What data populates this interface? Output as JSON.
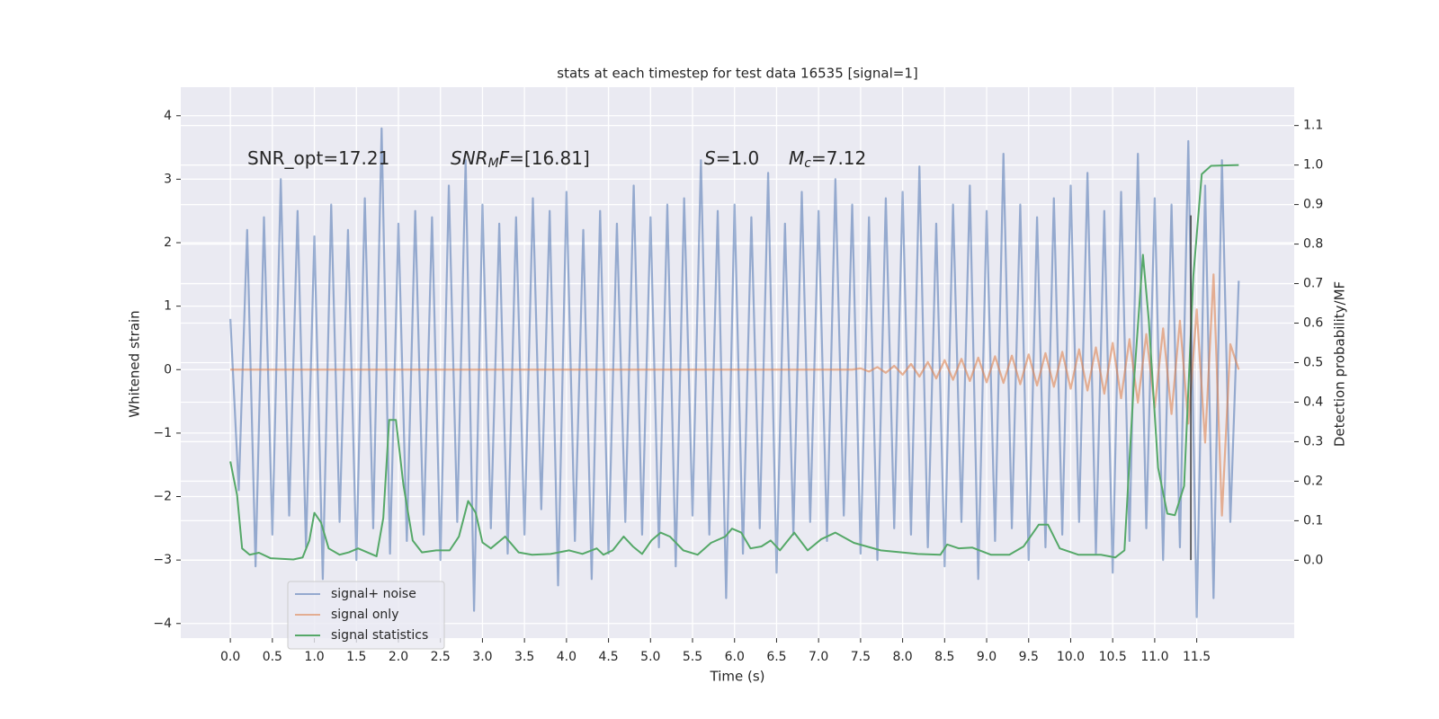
{
  "chart_data": {
    "type": "line",
    "title": "stats at each timestep for test data 16535 [signal=1]",
    "xlabel": "Time (s)",
    "ylabel": "Whitened strain",
    "y2label": "Detection probability/MF",
    "xlim": [
      -0.59,
      12.66
    ],
    "ylim": [
      -4.23,
      4.45
    ],
    "y2lim": [
      -0.197,
      1.197
    ],
    "xticks": [
      {
        "value": 0,
        "label": "0.0"
      },
      0.5,
      {
        "value": 1,
        "label": "1.0"
      },
      1.5,
      {
        "value": 2,
        "label": "2.0"
      },
      2.5,
      {
        "value": 3,
        "label": "3.0"
      },
      3.5,
      {
        "value": 4,
        "label": "4.0"
      },
      4.5,
      {
        "value": 5,
        "label": "5.0"
      },
      5.5,
      {
        "value": 6,
        "label": "6.0"
      },
      6.5,
      {
        "value": 7,
        "label": "7.0"
      },
      7.5,
      {
        "value": 8,
        "label": "8.0"
      },
      8.5,
      {
        "value": 9,
        "label": "9.0"
      },
      9.5,
      {
        "value": 10,
        "label": "10.0"
      },
      10.5,
      {
        "value": 11,
        "label": "11.0"
      },
      11.5
    ],
    "yticks": [
      {
        "value": -4,
        "label": "−4"
      },
      {
        "value": -3,
        "label": "−3"
      },
      {
        "value": -2,
        "label": "−2"
      },
      {
        "value": -1,
        "label": "−1"
      },
      0,
      1,
      2,
      3,
      4
    ],
    "y2ticks": [
      {
        "value": 0,
        "label": "0.0"
      },
      0.1,
      0.2,
      0.3,
      0.4,
      0.5,
      0.6,
      0.7,
      0.8,
      0.9,
      {
        "value": 1,
        "label": "1.0"
      },
      1.1
    ],
    "grid": true,
    "legend": "lower left",
    "x": [
      0,
      0.1,
      0.2,
      0.3,
      0.4,
      0.5,
      0.6,
      0.7,
      0.8,
      0.9,
      1,
      1.1,
      1.2,
      1.3,
      1.4,
      1.5,
      1.6,
      1.7,
      1.8,
      1.9,
      2,
      2.1,
      2.2,
      2.3,
      2.4,
      2.5,
      2.6,
      2.7,
      2.8,
      2.9,
      3,
      3.1,
      3.2,
      3.3,
      3.4,
      3.5,
      3.6,
      3.7,
      3.8,
      3.9,
      4,
      4.1,
      4.2,
      4.3,
      4.4,
      4.5,
      4.6,
      4.7,
      4.8,
      4.9,
      5,
      5.1,
      5.2,
      5.3,
      5.4,
      5.5,
      5.6,
      5.7,
      5.8,
      5.9,
      6,
      6.1,
      6.2,
      6.3,
      6.4,
      6.5,
      6.6,
      6.7,
      6.8,
      6.9,
      7,
      7.1,
      7.2,
      7.3,
      7.4,
      7.5,
      7.6,
      7.7,
      7.8,
      7.9,
      8,
      8.1,
      8.2,
      8.3,
      8.4,
      8.5,
      8.6,
      8.7,
      8.8,
      8.9,
      9,
      9.1,
      9.2,
      9.3,
      9.4,
      9.5,
      9.6,
      9.7,
      9.8,
      9.9,
      10,
      10.1,
      10.2,
      10.3,
      10.4,
      10.5,
      10.6,
      10.7,
      10.8,
      10.9,
      11,
      11.1,
      11.2,
      11.3,
      11.4,
      11.5,
      11.6,
      11.7,
      11.8,
      11.9,
      12
    ],
    "series": [
      {
        "name": "signal+ noise",
        "color": "#4c72b0",
        "opacity": 0.55,
        "values": [
          0.8,
          -1.9,
          2.2,
          -3.1,
          2.4,
          -2.6,
          3.0,
          -2.3,
          2.5,
          -2.8,
          2.1,
          -3.3,
          2.6,
          -2.4,
          2.2,
          -3.0,
          2.7,
          -2.5,
          3.8,
          -2.9,
          2.3,
          -2.7,
          2.5,
          -2.6,
          2.4,
          -3.0,
          2.9,
          -2.4,
          3.3,
          -3.8,
          2.6,
          -2.5,
          2.3,
          -2.9,
          2.4,
          -2.6,
          2.7,
          -2.2,
          2.5,
          -3.4,
          2.8,
          -2.7,
          2.2,
          -3.3,
          2.5,
          -2.9,
          2.3,
          -2.4,
          2.9,
          -2.6,
          2.4,
          -2.8,
          2.6,
          -3.1,
          2.7,
          -2.3,
          3.3,
          -2.6,
          2.5,
          -3.6,
          2.6,
          -2.9,
          2.4,
          -2.5,
          3.1,
          -3.2,
          2.3,
          -2.6,
          2.8,
          -2.4,
          2.5,
          -2.7,
          3.0,
          -2.3,
          2.6,
          -2.9,
          2.4,
          -3.0,
          2.7,
          -2.5,
          2.8,
          -2.6,
          3.2,
          -2.8,
          2.3,
          -3.1,
          2.6,
          -2.4,
          2.9,
          -3.3,
          2.5,
          -2.7,
          3.4,
          -2.5,
          2.6,
          -3.0,
          2.4,
          -2.8,
          2.7,
          -2.6,
          2.9,
          -2.4,
          3.1,
          -2.9,
          2.5,
          -3.2,
          2.8,
          -2.7,
          3.4,
          -2.5,
          2.7,
          -3.0,
          2.6,
          -2.8,
          3.6,
          -3.9,
          2.9,
          -3.6,
          3.3,
          -2.4,
          1.4
        ]
      },
      {
        "name": "signal only",
        "color": "#dd8452",
        "opacity": 0.6,
        "values": [
          0,
          0,
          0,
          0,
          0,
          0,
          0,
          0,
          0,
          0,
          0,
          0,
          0,
          0,
          0,
          0,
          0,
          0,
          0,
          0,
          0,
          0,
          0,
          0,
          0,
          0,
          0,
          0,
          0,
          0,
          0,
          0,
          0,
          0,
          0,
          0,
          0,
          0,
          0,
          0,
          0,
          0,
          0,
          0,
          0,
          0,
          0,
          0,
          0,
          0,
          0,
          0,
          0,
          0,
          0,
          0,
          0,
          0,
          0,
          0,
          0,
          0,
          0,
          0,
          0,
          0,
          0,
          0,
          0,
          0,
          0,
          0,
          0,
          0,
          0,
          0.02,
          -0.03,
          0.04,
          -0.05,
          0.06,
          -0.08,
          0.09,
          -0.11,
          0.12,
          -0.14,
          0.15,
          -0.16,
          0.17,
          -0.18,
          0.19,
          -0.2,
          0.21,
          -0.21,
          0.22,
          -0.23,
          0.24,
          -0.25,
          0.26,
          -0.27,
          0.28,
          -0.3,
          0.32,
          -0.33,
          0.35,
          -0.38,
          0.42,
          -0.45,
          0.48,
          -0.52,
          0.56,
          -0.6,
          0.65,
          -0.7,
          0.77,
          -0.85,
          0.95,
          -1.15,
          1.5,
          -2.3,
          0.4,
          0
        ]
      },
      {
        "name": "signal statistics",
        "color": "#55a868",
        "axis": "y2",
        "x": [
          0,
          0.08,
          0.14,
          0.23,
          0.34,
          0.48,
          0.75,
          0.86,
          0.94,
          1.0,
          1.08,
          1.17,
          1.3,
          1.41,
          1.52,
          1.63,
          1.74,
          1.82,
          1.89,
          1.97,
          2.06,
          2.17,
          2.28,
          2.45,
          2.61,
          2.72,
          2.83,
          2.92,
          3.0,
          3.1,
          3.27,
          3.43,
          3.59,
          3.81,
          4.03,
          4.19,
          4.36,
          4.44,
          4.55,
          4.68,
          4.79,
          4.9,
          5.01,
          5.12,
          5.23,
          5.39,
          5.56,
          5.72,
          5.89,
          5.97,
          6.08,
          6.19,
          6.32,
          6.43,
          6.54,
          6.71,
          6.87,
          7.03,
          7.2,
          7.42,
          7.74,
          8.18,
          8.45,
          8.53,
          8.67,
          8.83,
          9.05,
          9.27,
          9.44,
          9.62,
          9.73,
          9.87,
          10.09,
          10.36,
          10.53,
          10.64,
          10.75,
          10.86,
          10.93,
          11.04,
          11.15,
          11.24,
          11.35,
          11.46,
          11.56,
          11.67,
          12.0
        ],
        "values": [
          0.25,
          0.165,
          0.03,
          0.014,
          0.019,
          0.005,
          0.002,
          0.007,
          0.05,
          0.12,
          0.095,
          0.03,
          0.014,
          0.02,
          0.03,
          0.02,
          0.01,
          0.107,
          0.355,
          0.355,
          0.19,
          0.05,
          0.02,
          0.025,
          0.025,
          0.06,
          0.15,
          0.12,
          0.045,
          0.03,
          0.06,
          0.02,
          0.014,
          0.016,
          0.025,
          0.016,
          0.03,
          0.014,
          0.025,
          0.06,
          0.035,
          0.016,
          0.05,
          0.07,
          0.06,
          0.025,
          0.014,
          0.044,
          0.06,
          0.08,
          0.07,
          0.03,
          0.035,
          0.05,
          0.025,
          0.07,
          0.025,
          0.053,
          0.07,
          0.044,
          0.025,
          0.016,
          0.014,
          0.04,
          0.03,
          0.032,
          0.014,
          0.014,
          0.035,
          0.09,
          0.09,
          0.03,
          0.014,
          0.014,
          0.007,
          0.025,
          0.443,
          0.773,
          0.606,
          0.234,
          0.118,
          0.114,
          0.188,
          0.72,
          0.977,
          0.998,
          1.0
        ]
      }
    ],
    "vline": {
      "x": 11.43,
      "ymin": -3,
      "ymax": 2.43,
      "color": "#3a3a3a"
    },
    "annotations": [
      [
        {
          "text": "SNR_opt=17.21"
        }
      ],
      [
        {
          "text": "SNR",
          "italic": true
        },
        {
          "text": "M",
          "italic": true,
          "sub": true
        },
        {
          "text": "F",
          "italic": true
        },
        {
          "text": "=[16.81]"
        }
      ],
      [
        {
          "text": "S",
          "italic": true
        },
        {
          "text": "=1.0"
        }
      ],
      [
        {
          "text": "M",
          "italic": true
        },
        {
          "text": "c",
          "italic": true,
          "sub": true
        },
        {
          "text": "=7.12"
        }
      ]
    ]
  }
}
